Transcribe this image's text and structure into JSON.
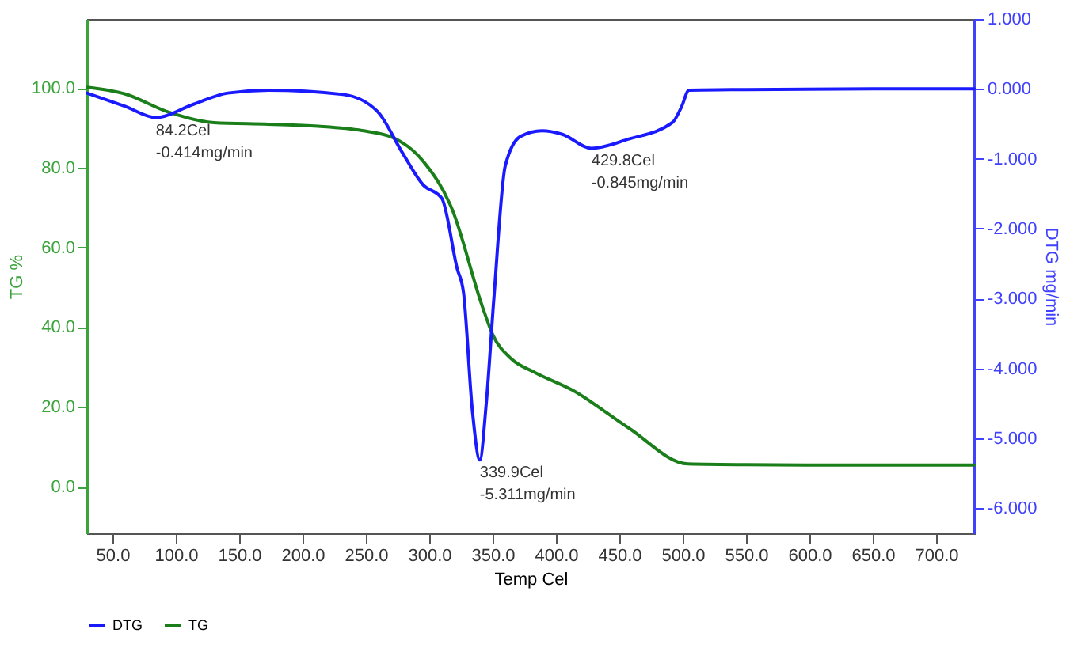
{
  "chart_data": {
    "type": "line",
    "xlabel": "Temp Cel",
    "ylabel": "TG %",
    "y2label": "DTG mg/min",
    "xlim": [
      30,
      730
    ],
    "xticks": [
      {
        "value": 50,
        "label": "50.0"
      },
      {
        "value": 100,
        "label": "100.0"
      },
      {
        "value": 150,
        "label": "150.0"
      },
      {
        "value": 200,
        "label": "200.0"
      },
      {
        "value": 250,
        "label": "250.0"
      },
      {
        "value": 300,
        "label": "300.0"
      },
      {
        "value": 350,
        "label": "350.0"
      },
      {
        "value": 400,
        "label": "400.0"
      },
      {
        "value": 450,
        "label": "450.0"
      },
      {
        "value": 500,
        "label": "500.0"
      },
      {
        "value": 550,
        "label": "550.0"
      },
      {
        "value": 600,
        "label": "600.0"
      },
      {
        "value": 650,
        "label": "650.0"
      },
      {
        "value": 700,
        "label": "700.0"
      }
    ],
    "ylim": [
      -11.7,
      117.3
    ],
    "yticks": [
      {
        "value": 0,
        "label": "0.0"
      },
      {
        "value": 20,
        "label": "20.0"
      },
      {
        "value": 40,
        "label": "40.0"
      },
      {
        "value": 60,
        "label": "60.0"
      },
      {
        "value": 80,
        "label": "80.0"
      },
      {
        "value": 100,
        "label": "100.0"
      }
    ],
    "y2lim": [
      -6.36,
      1.0
    ],
    "y2ticks": [
      {
        "value": -6,
        "label": "-6.000"
      },
      {
        "value": -5,
        "label": "-5.000"
      },
      {
        "value": -4,
        "label": "-4.000"
      },
      {
        "value": -3,
        "label": "-3.000"
      },
      {
        "value": -2,
        "label": "-2.000"
      },
      {
        "value": -1,
        "label": "-1.000"
      },
      {
        "value": 0,
        "label": "0.000"
      },
      {
        "value": 1,
        "label": "1.000"
      }
    ],
    "legend": "bottom",
    "grid": false,
    "marker": "none",
    "annotations": [
      "84.2Cel\n-0.414mg/min",
      "339.9Cel\n-5.311mg/min",
      "429.8Cel\n-0.845mg/min"
    ],
    "series": [
      {
        "name": "DTG",
        "color": "#1a1aff",
        "axis": "y2",
        "x": [
          30,
          60,
          84.2,
          114,
          141,
          173,
          232,
          259,
          279,
          295,
          310,
          322,
          327,
          334,
          339.9,
          345,
          351,
          360,
          372,
          389,
          405,
          428,
          457,
          492,
          499,
          505,
          550,
          650,
          730
        ],
        "values": [
          -0.06,
          -0.25,
          -0.41,
          -0.22,
          -0.06,
          -0.02,
          -0.08,
          -0.32,
          -0.92,
          -1.37,
          -1.57,
          -2.57,
          -2.91,
          -4.6,
          -5.31,
          -4.5,
          -3.0,
          -1.1,
          -0.68,
          -0.6,
          -0.65,
          -0.85,
          -0.72,
          -0.48,
          -0.26,
          -0.02,
          -0.01,
          0.0,
          0.0
        ]
      },
      {
        "name": "TG",
        "color": "#1a7f1a",
        "x": [
          30,
          60,
          93.7,
          130,
          173,
          212,
          247,
          271,
          295,
          318,
          342,
          350,
          365,
          383,
          413,
          457,
          504,
          550,
          650,
          730
        ],
        "values": [
          100.2,
          98.5,
          94,
          91.3,
          90.9,
          90.4,
          89.3,
          87.6,
          81.7,
          69.6,
          45.1,
          38.2,
          32,
          28.7,
          24.2,
          14.8,
          5.7,
          5.5,
          5.4,
          5.4
        ]
      }
    ]
  }
}
